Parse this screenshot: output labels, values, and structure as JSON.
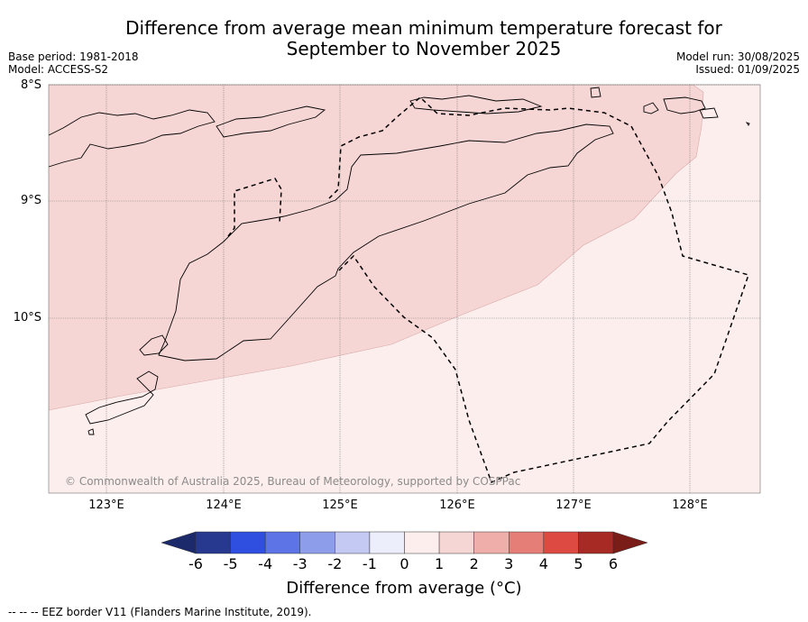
{
  "title_line1": "Difference from average mean minimum temperature forecast for",
  "title_line2": "September to November 2025",
  "meta_left": [
    "Base period: 1981-2018",
    "Model: ACCESS-S2"
  ],
  "meta_right": [
    "Model run: 30/08/2025",
    "Issued: 01/09/2025"
  ],
  "lat_labels": [
    "8°S",
    "9°S",
    "10°S"
  ],
  "lon_labels": [
    "123°E",
    "124°E",
    "125°E",
    "126°E",
    "127°E",
    "128°E"
  ],
  "copyright": "© Commonwealth of Australia 2025, Bureau of Meteorology, supported by COSPPac",
  "colorbar": {
    "ticks": [
      "-6",
      "-5",
      "-4",
      "-3",
      "-2",
      "-1",
      "0",
      "1",
      "2",
      "3",
      "4",
      "5",
      "6"
    ],
    "title": "Difference from average (°C)",
    "colors": [
      "#26398f",
      "#2f4fe0",
      "#5d74e6",
      "#8e9de9",
      "#c3c9f3",
      "#eceefc",
      "#fdeeee",
      "#f6d6d5",
      "#efaeaa",
      "#e57e76",
      "#dc4a42",
      "#a82a24"
    ],
    "under_color": "#1c2a6b",
    "over_color": "#7a1c18"
  },
  "map_colors": {
    "band_1_to_2": "#f6d6d5",
    "band_0_to_1": "#fdeeee"
  },
  "footer": "--  --  -- EEZ border V11 (Flanders Marine Institute, 2019)."
}
